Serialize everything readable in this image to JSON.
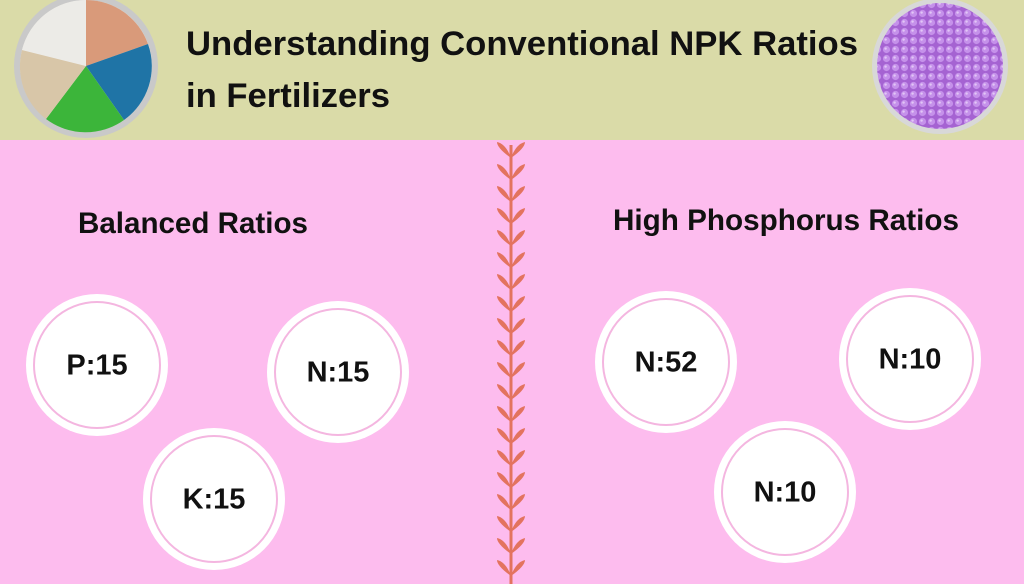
{
  "header": {
    "title_lines": [
      "Understanding Conventional NPK Ratios",
      "in Fertilizers"
    ]
  },
  "sections": [
    {
      "heading": "Balanced Ratios",
      "items": [
        "P:15",
        "N:15",
        "K:15"
      ]
    },
    {
      "heading": "High Phosphorus Ratios",
      "items": [
        "N:52",
        "N:10",
        "N:10"
      ]
    }
  ]
}
